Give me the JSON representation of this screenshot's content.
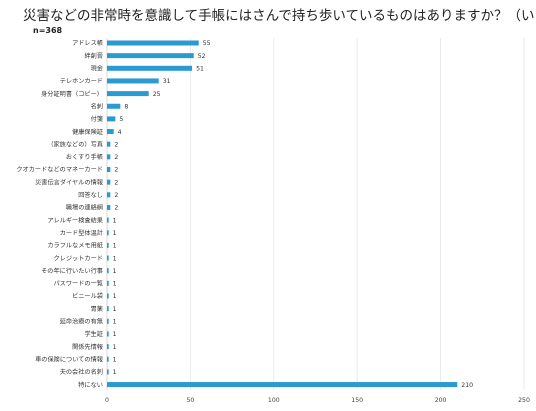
{
  "chart_data": {
    "type": "bar",
    "orientation": "horizontal",
    "title": "災害などの非常時を意識して手帳にはさんで持ち歩いているものはありますか？（いくつでも）",
    "sample_size": "n=368",
    "categories": [
      "アドレス帳",
      "絆創膏",
      "現金",
      "テレホンカード",
      "身分証明書（コピー）",
      "名刺",
      "付箋",
      "健康保険証",
      "（家族などの）写真",
      "おくすり手帳",
      "クオカードなどのマネーカード",
      "災害伝言ダイヤルの情報",
      "回答なし",
      "職場の連絡網",
      "アレルギー検査結果",
      "カード型体温計",
      "カラフルなメモ用紙",
      "クレジットカード",
      "その年に行いたい行事",
      "パスワードの一覧",
      "ビニール袋",
      "胃薬",
      "延命治療の有無",
      "学生証",
      "関係先情報",
      "車の保険についての情報",
      "夫の会社の名刺",
      "特にない"
    ],
    "values": [
      55,
      52,
      51,
      31,
      25,
      8,
      5,
      4,
      2,
      2,
      2,
      2,
      2,
      2,
      1,
      1,
      1,
      1,
      1,
      1,
      1,
      1,
      1,
      1,
      1,
      1,
      1,
      210
    ],
    "xlim": [
      0,
      250
    ],
    "xticks": [
      0,
      50,
      100,
      150,
      200,
      250
    ],
    "grid": true,
    "bar_color": "#2a9ad1"
  }
}
